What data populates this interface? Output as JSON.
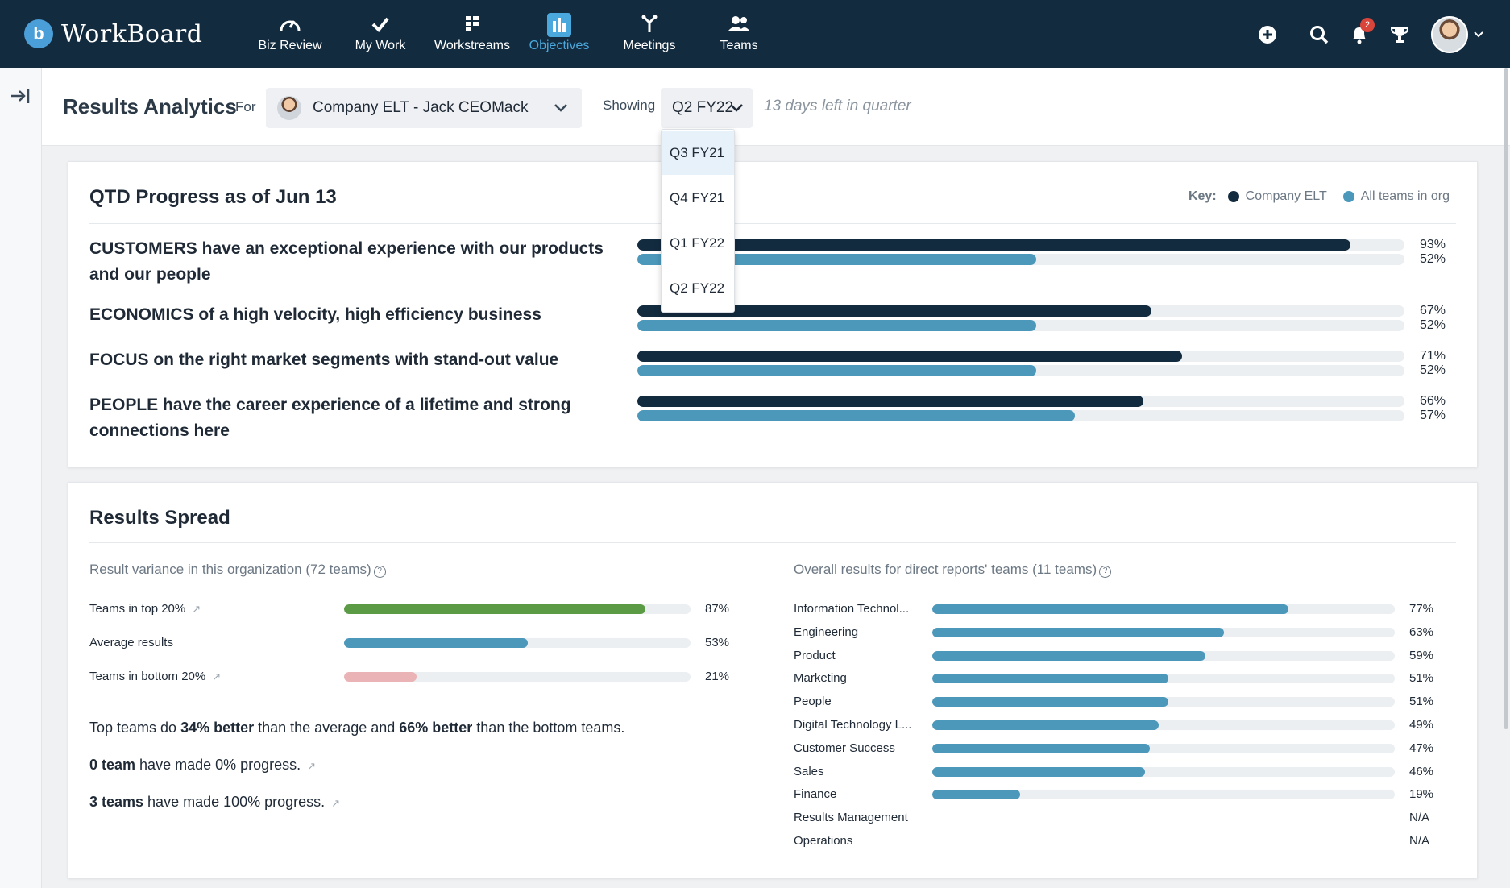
{
  "app": {
    "name": "WorkBoard",
    "notification_count": "2"
  },
  "nav": [
    {
      "label": "Biz Review",
      "icon": "gauge-icon"
    },
    {
      "label": "My Work",
      "icon": "check-icon"
    },
    {
      "label": "Workstreams",
      "icon": "workstreams-icon"
    },
    {
      "label": "Objectives",
      "icon": "bar-chart-icon",
      "active": true
    },
    {
      "label": "Meetings",
      "icon": "meetings-icon"
    },
    {
      "label": "Teams",
      "icon": "teams-icon"
    }
  ],
  "header": {
    "title": "Results Analytics",
    "for_label": "For",
    "owner": "Company ELT - Jack CEOMack",
    "showing_label": "Showing",
    "quarter": "Q2 FY22",
    "days_left": "13 days left in quarter"
  },
  "quarter_options": [
    "Q3 FY21",
    "Q4 FY21",
    "Q1 FY22",
    "Q2 FY22"
  ],
  "qtd": {
    "title": "QTD Progress as of Jun 13",
    "key_label": "Key:",
    "key_company": "Company ELT",
    "key_all": "All teams in org",
    "colors": {
      "company": "#132b3f",
      "all": "#4c98bb"
    },
    "objectives": [
      {
        "label": "CUSTOMERS have an exceptional experience with our products and our people",
        "company": 93,
        "all": 52,
        "company_label": "93%",
        "all_label": "52%"
      },
      {
        "label": "ECONOMICS of a high velocity, high efficiency business",
        "company": 67,
        "all": 52,
        "company_label": "67%",
        "all_label": "52%"
      },
      {
        "label": "FOCUS on the right market segments with stand-out value",
        "company": 71,
        "all": 52,
        "company_label": "71%",
        "all_label": "52%"
      },
      {
        "label": "PEOPLE have the career experience of a lifetime and strong connections here",
        "company": 66,
        "all": 57,
        "company_label": "66%",
        "all_label": "57%"
      }
    ]
  },
  "spread": {
    "title": "Results Spread",
    "variance_title": "Result variance in this organization (72 teams)",
    "variance": [
      {
        "label": "Teams in top 20%",
        "value": 87,
        "value_label": "87%",
        "color": "green",
        "link": true
      },
      {
        "label": "Average results",
        "value": 53,
        "value_label": "53%",
        "color": "blue",
        "link": false
      },
      {
        "label": "Teams in bottom 20%",
        "value": 21,
        "value_label": "21%",
        "color": "pink",
        "link": true
      }
    ],
    "summary1": {
      "a": "Top teams do ",
      "b": "34% better",
      "c": " than the average and ",
      "d": "66% better",
      "e": " than the bottom teams."
    },
    "summary2": {
      "b": "0 team",
      "c": " have made 0% progress."
    },
    "summary3": {
      "b": "3 teams",
      "c": " have made 100% progress."
    },
    "direct_title": "Overall results for direct reports' teams (11 teams)",
    "direct": [
      {
        "label": "Information Technol...",
        "value": 77,
        "value_label": "77%"
      },
      {
        "label": "Engineering",
        "value": 63,
        "value_label": "63%"
      },
      {
        "label": "Product",
        "value": 59,
        "value_label": "59%"
      },
      {
        "label": "Marketing",
        "value": 51,
        "value_label": "51%"
      },
      {
        "label": "People",
        "value": 51,
        "value_label": "51%"
      },
      {
        "label": "Digital Technology L...",
        "value": 49,
        "value_label": "49%"
      },
      {
        "label": "Customer Success",
        "value": 47,
        "value_label": "47%"
      },
      {
        "label": "Sales",
        "value": 46,
        "value_label": "46%"
      },
      {
        "label": "Finance",
        "value": 19,
        "value_label": "19%"
      },
      {
        "label": "Results Management",
        "value": null,
        "value_label": "N/A"
      },
      {
        "label": "Operations",
        "value": null,
        "value_label": "N/A"
      }
    ]
  }
}
